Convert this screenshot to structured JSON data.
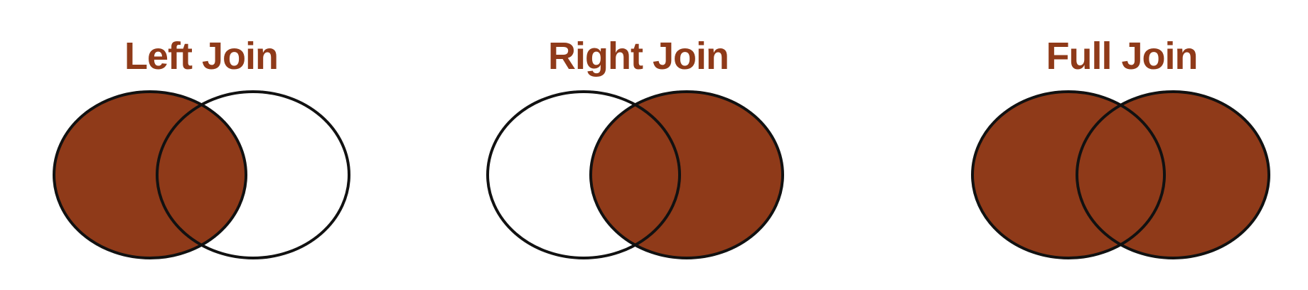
{
  "colors": {
    "fill": "#8f3a19",
    "title": "#8f3a19",
    "stroke": "#111111",
    "background": "#ffffff"
  },
  "panels": [
    {
      "title": "Left Join",
      "left_filled": true,
      "right_filled": false
    },
    {
      "title": "Right Join",
      "left_filled": false,
      "right_filled": true
    },
    {
      "title": "Full Join",
      "left_filled": true,
      "right_filled": true
    }
  ]
}
